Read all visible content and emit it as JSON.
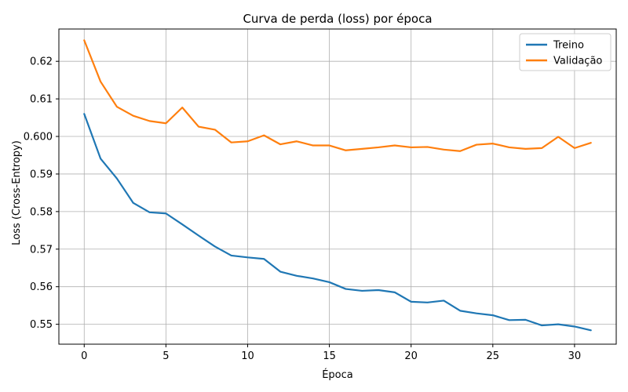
{
  "chart_data": {
    "type": "line",
    "title": "Curva de perda (loss) por época",
    "xlabel": "Época",
    "ylabel": "Loss (Cross-Entropy)",
    "xlim": [
      -1.55,
      32.55
    ],
    "ylim": [
      0.5447,
      0.6286
    ],
    "xticks": [
      0,
      5,
      10,
      15,
      20,
      25,
      30
    ],
    "yticks": [
      0.55,
      0.56,
      0.57,
      0.58,
      0.59,
      0.6,
      0.61,
      0.62
    ],
    "ytick_labels": [
      "0.55",
      "0.56",
      "0.57",
      "0.58",
      "0.59",
      "0.600",
      "0.61",
      "0.62"
    ],
    "grid": true,
    "legend_position": "top-right",
    "x": [
      0,
      1,
      2,
      3,
      4,
      5,
      6,
      7,
      8,
      9,
      10,
      11,
      12,
      13,
      14,
      15,
      16,
      17,
      18,
      19,
      20,
      21,
      22,
      23,
      24,
      25,
      26,
      27,
      28,
      29,
      30,
      31
    ],
    "series": [
      {
        "name": "Treino",
        "color": "#1f77b4",
        "values": [
          0.606,
          0.5941,
          0.5888,
          0.5823,
          0.5798,
          0.5795,
          0.5766,
          0.5736,
          0.5707,
          0.5683,
          0.5678,
          0.5674,
          0.564,
          0.5629,
          0.5622,
          0.5612,
          0.5594,
          0.5589,
          0.5591,
          0.5585,
          0.556,
          0.5558,
          0.5563,
          0.5536,
          0.5529,
          0.5524,
          0.5511,
          0.5512,
          0.5497,
          0.55,
          0.5494,
          0.5484
        ]
      },
      {
        "name": "Validação",
        "color": "#ff7f0e",
        "values": [
          0.6256,
          0.6146,
          0.6079,
          0.6055,
          0.6041,
          0.6035,
          0.6077,
          0.6026,
          0.6018,
          0.5984,
          0.5987,
          0.6003,
          0.5979,
          0.5987,
          0.5976,
          0.5976,
          0.5963,
          0.5967,
          0.5971,
          0.5976,
          0.5971,
          0.5972,
          0.5965,
          0.5961,
          0.5978,
          0.5981,
          0.5971,
          0.5967,
          0.5969,
          0.5999,
          0.5969,
          0.5983
        ]
      }
    ]
  }
}
